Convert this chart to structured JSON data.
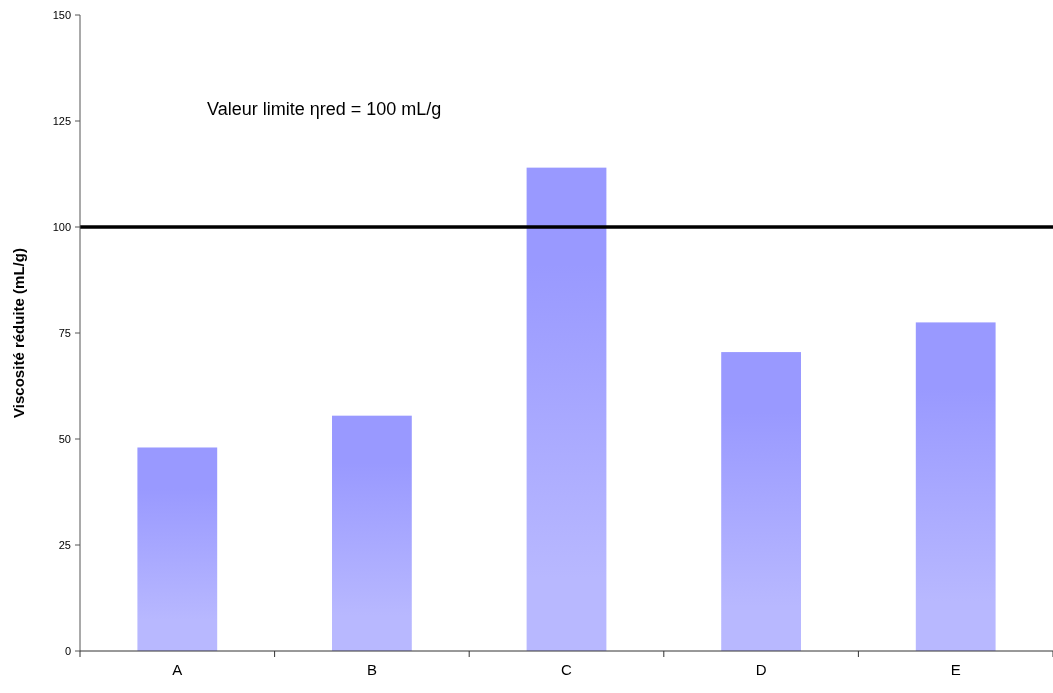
{
  "chart_data": {
    "type": "bar",
    "ylabel": "Viscosité réduite (mL/g)",
    "categories": [
      "A",
      "B",
      "C",
      "D",
      "E"
    ],
    "values": [
      48,
      55.5,
      114,
      70.5,
      77.5
    ],
    "color": "#9999ff",
    "ylim": [
      0,
      150
    ],
    "yticks": [
      0,
      25,
      50,
      75,
      100,
      125,
      150
    ],
    "grid": false,
    "ref_lines": [
      {
        "axis": "y",
        "value": 100,
        "label": "Valeur limite ηred = 100 mL/g",
        "color": "#000000"
      }
    ]
  }
}
